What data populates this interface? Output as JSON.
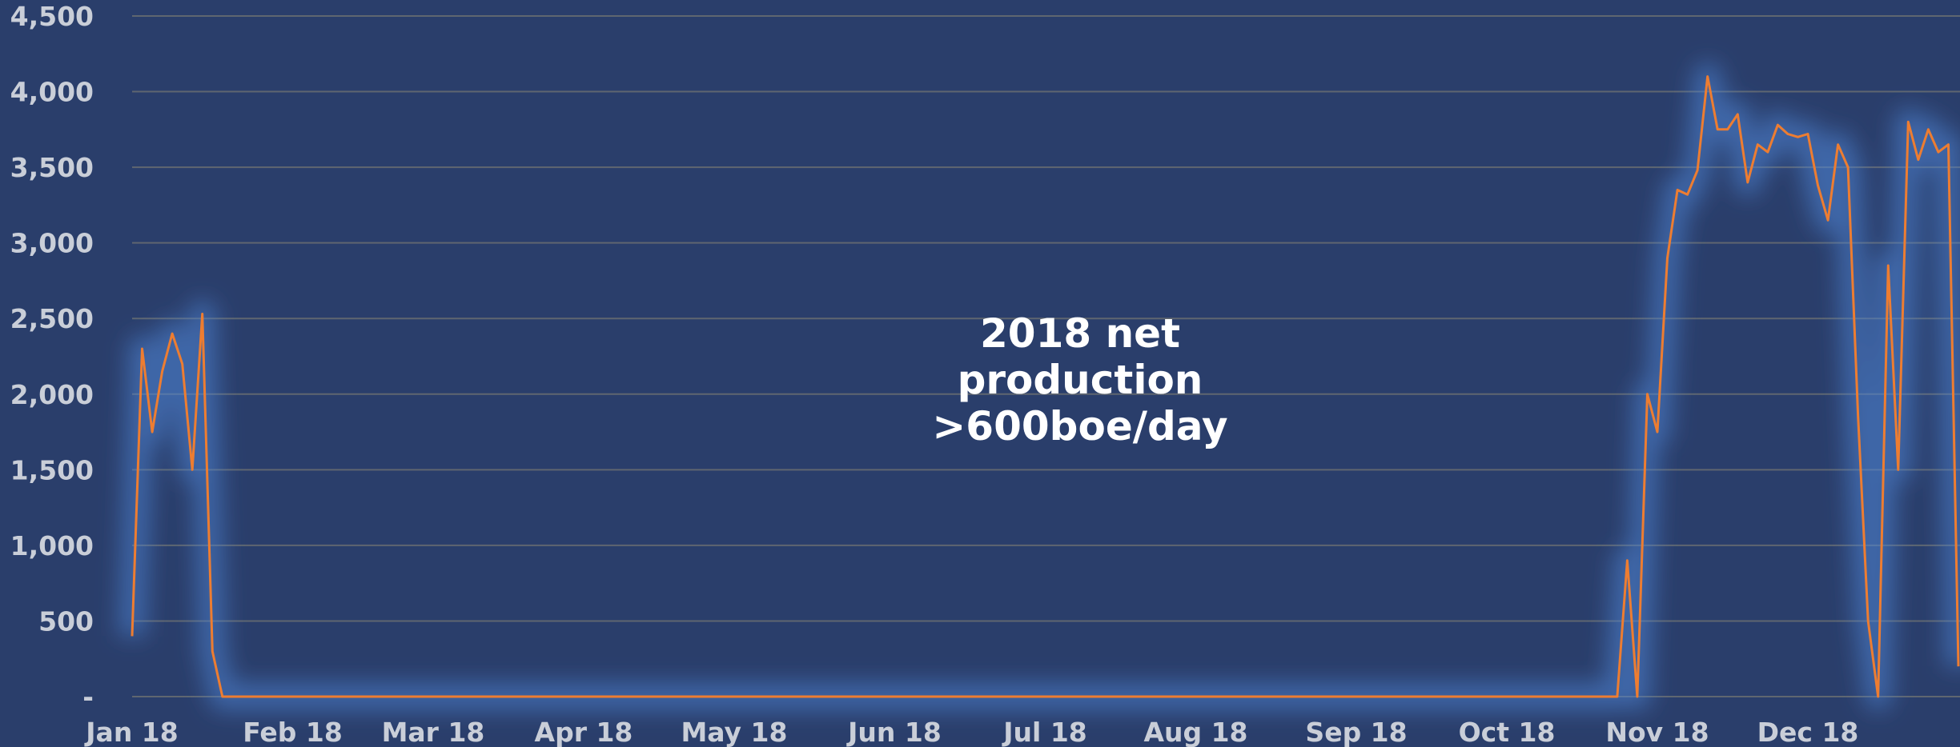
{
  "chart_data": {
    "type": "line",
    "annotation": [
      "2018 net",
      "production",
      ">600boe/day"
    ],
    "categories": [
      "Jan 18",
      null,
      null,
      null,
      null,
      null,
      null,
      null,
      null,
      null,
      null,
      null,
      null,
      null,
      null,
      null,
      "Feb 18",
      null,
      null,
      null,
      null,
      null,
      null,
      null,
      null,
      null,
      null,
      null,
      null,
      null,
      "Mar 18",
      null,
      null,
      null,
      null,
      null,
      null,
      null,
      null,
      null,
      null,
      null,
      null,
      null,
      null,
      "Apr 18",
      null,
      null,
      null,
      null,
      null,
      null,
      null,
      null,
      null,
      null,
      null,
      null,
      null,
      null,
      "May 18",
      null,
      null,
      null,
      null,
      null,
      null,
      null,
      null,
      null,
      null,
      null,
      null,
      null,
      null,
      null,
      "Jun 18",
      null,
      null,
      null,
      null,
      null,
      null,
      null,
      null,
      null,
      null,
      null,
      null,
      null,
      null,
      "Jul 18",
      null,
      null,
      null,
      null,
      null,
      null,
      null,
      null,
      null,
      null,
      null,
      null,
      null,
      null,
      "Aug 18",
      null,
      null,
      null,
      null,
      null,
      null,
      null,
      null,
      null,
      null,
      null,
      null,
      null,
      null,
      null,
      "Sep 18",
      null,
      null,
      null,
      null,
      null,
      null,
      null,
      null,
      null,
      null,
      null,
      null,
      null,
      null,
      "Oct 18",
      null,
      null,
      null,
      null,
      null,
      null,
      null,
      null,
      null,
      null,
      null,
      null,
      null,
      null,
      "Nov 18",
      null,
      null,
      null,
      null,
      null,
      null,
      null,
      null,
      null,
      null,
      null,
      null,
      null,
      null,
      "Dec 18",
      null,
      null,
      null,
      null,
      null,
      null,
      null,
      null,
      null,
      null,
      null,
      null,
      null,
      null,
      null
    ],
    "series": [
      {
        "color": "#ed7d31",
        "values": [
          400,
          2300,
          1750,
          2150,
          2400,
          2200,
          1500,
          2530,
          300,
          0,
          0,
          0,
          0,
          0,
          0,
          0,
          0,
          0,
          0,
          0,
          0,
          0,
          0,
          0,
          0,
          0,
          0,
          0,
          0,
          0,
          0,
          0,
          0,
          0,
          0,
          0,
          0,
          0,
          0,
          0,
          0,
          0,
          0,
          0,
          0,
          0,
          0,
          0,
          0,
          0,
          0,
          0,
          0,
          0,
          0,
          0,
          0,
          0,
          0,
          0,
          0,
          0,
          0,
          0,
          0,
          0,
          0,
          0,
          0,
          0,
          0,
          0,
          0,
          0,
          0,
          0,
          0,
          0,
          0,
          0,
          0,
          0,
          0,
          0,
          0,
          0,
          0,
          0,
          0,
          0,
          0,
          0,
          0,
          0,
          0,
          0,
          0,
          0,
          0,
          0,
          0,
          0,
          0,
          0,
          0,
          0,
          0,
          0,
          0,
          0,
          0,
          0,
          0,
          0,
          0,
          0,
          0,
          0,
          0,
          0,
          0,
          0,
          0,
          0,
          0,
          0,
          0,
          0,
          0,
          0,
          0,
          0,
          0,
          0,
          0,
          0,
          0,
          0,
          0,
          0,
          0,
          0,
          0,
          0,
          0,
          0,
          0,
          0,
          0,
          900,
          0,
          2000,
          1750,
          2900,
          3350,
          3320,
          3480,
          4100,
          3750,
          3750,
          3850,
          3400,
          3650,
          3600,
          3780,
          3720,
          3700,
          3720,
          3380,
          3150,
          3650,
          3500,
          1850,
          500,
          0,
          2850,
          1500,
          3800,
          3550,
          3750,
          3600,
          3650,
          200
        ]
      }
    ],
    "ylim": [
      0,
      4500
    ],
    "yticks": [
      {
        "value": 0,
        "label": "-"
      },
      500,
      {
        "value": 1000,
        "label": "1,000"
      },
      {
        "value": 1500,
        "label": "1,500"
      },
      {
        "value": 2000,
        "label": "2,000"
      },
      {
        "value": 2500,
        "label": "2,500"
      },
      {
        "value": 3000,
        "label": "3,000"
      },
      {
        "value": 3500,
        "label": "3,500"
      },
      {
        "value": 4000,
        "label": "4,000"
      },
      {
        "value": 4500,
        "label": "4,500"
      }
    ],
    "grid": true
  }
}
